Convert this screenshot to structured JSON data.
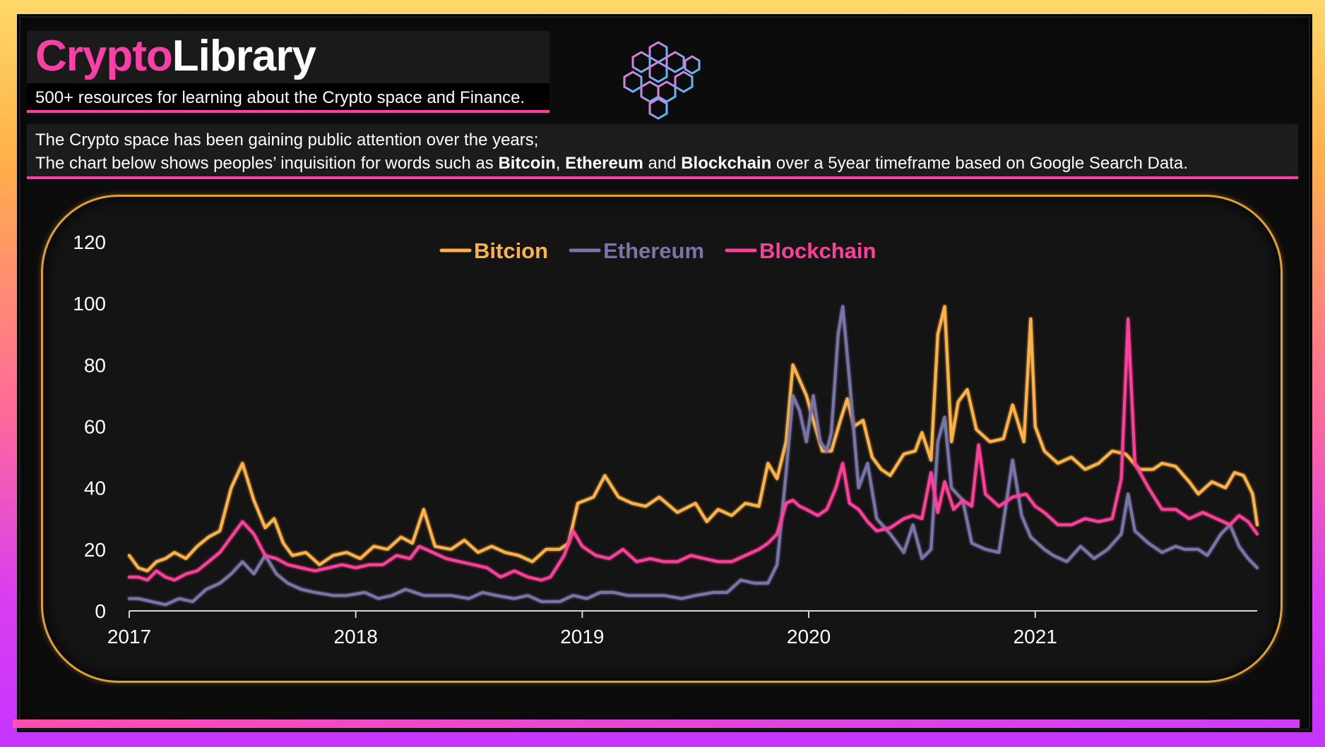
{
  "brand": {
    "part1": "Crypto",
    "part2": "Library"
  },
  "tagline": "500+ resources for learning about the Crypto space and Finance.",
  "description": {
    "line1": "The Crypto space has been gaining public attention over the years;",
    "line2_prefix": "The chart below shows peoples’ inquisition for words such as ",
    "term1": "Bitcoin",
    "sep1": ", ",
    "term2": "Ethereum",
    "sep2": " and ",
    "term3": "Blockchain",
    "line2_suffix": " over a 5year timeframe based on Google Search Data."
  },
  "colors": {
    "accent": "#ff3fa6",
    "bitcoin": "#ffb347",
    "ethereum": "#7a74a8",
    "blockchain": "#ff3f9a",
    "frame_gold": "#e0a030"
  },
  "icons": {
    "logo": "blockchain-cubes-icon"
  },
  "chart_data": {
    "type": "line",
    "title": "",
    "xlabel": "",
    "ylabel": "",
    "ylim": [
      0,
      120
    ],
    "xlim": [
      2017,
      2021.98
    ],
    "yticks": [
      0,
      20,
      40,
      60,
      80,
      100,
      120
    ],
    "xticks": [
      2017,
      2018,
      2019,
      2020,
      2021
    ],
    "legend_position": "top-center",
    "grid": false,
    "series": [
      {
        "name": "Bitcion",
        "color": "#ffb347",
        "points": [
          [
            2017.0,
            18
          ],
          [
            2017.04,
            14
          ],
          [
            2017.08,
            13
          ],
          [
            2017.12,
            16
          ],
          [
            2017.16,
            17
          ],
          [
            2017.2,
            19
          ],
          [
            2017.25,
            17
          ],
          [
            2017.3,
            21
          ],
          [
            2017.35,
            24
          ],
          [
            2017.4,
            26
          ],
          [
            2017.45,
            40
          ],
          [
            2017.5,
            48
          ],
          [
            2017.55,
            36
          ],
          [
            2017.6,
            27
          ],
          [
            2017.64,
            30
          ],
          [
            2017.68,
            22
          ],
          [
            2017.72,
            18
          ],
          [
            2017.78,
            19
          ],
          [
            2017.84,
            15
          ],
          [
            2017.9,
            18
          ],
          [
            2017.96,
            19
          ],
          [
            2018.02,
            17
          ],
          [
            2018.08,
            21
          ],
          [
            2018.14,
            20
          ],
          [
            2018.2,
            24
          ],
          [
            2018.25,
            22
          ],
          [
            2018.3,
            33
          ],
          [
            2018.35,
            21
          ],
          [
            2018.42,
            20
          ],
          [
            2018.48,
            23
          ],
          [
            2018.54,
            19
          ],
          [
            2018.6,
            21
          ],
          [
            2018.66,
            19
          ],
          [
            2018.72,
            18
          ],
          [
            2018.78,
            16
          ],
          [
            2018.84,
            20
          ],
          [
            2018.9,
            20
          ],
          [
            2018.94,
            22
          ],
          [
            2018.98,
            35
          ],
          [
            2019.05,
            37
          ],
          [
            2019.1,
            44
          ],
          [
            2019.16,
            37
          ],
          [
            2019.22,
            35
          ],
          [
            2019.28,
            34
          ],
          [
            2019.34,
            37
          ],
          [
            2019.42,
            32
          ],
          [
            2019.5,
            35
          ],
          [
            2019.55,
            29
          ],
          [
            2019.6,
            33
          ],
          [
            2019.66,
            31
          ],
          [
            2019.72,
            35
          ],
          [
            2019.78,
            34
          ],
          [
            2019.82,
            48
          ],
          [
            2019.86,
            43
          ],
          [
            2019.9,
            55
          ],
          [
            2019.93,
            80
          ],
          [
            2019.96,
            75
          ],
          [
            2019.99,
            70
          ],
          [
            2020.02,
            62
          ],
          [
            2020.06,
            52
          ],
          [
            2020.1,
            52
          ],
          [
            2020.14,
            62
          ],
          [
            2020.17,
            69
          ],
          [
            2020.2,
            60
          ],
          [
            2020.24,
            62
          ],
          [
            2020.28,
            50
          ],
          [
            2020.32,
            46
          ],
          [
            2020.36,
            44
          ],
          [
            2020.42,
            51
          ],
          [
            2020.47,
            52
          ],
          [
            2020.5,
            58
          ],
          [
            2020.54,
            49
          ],
          [
            2020.57,
            90
          ],
          [
            2020.6,
            99
          ],
          [
            2020.63,
            55
          ],
          [
            2020.66,
            68
          ],
          [
            2020.7,
            72
          ],
          [
            2020.74,
            59
          ],
          [
            2020.8,
            55
          ],
          [
            2020.86,
            56
          ],
          [
            2020.9,
            67
          ],
          [
            2020.95,
            55
          ],
          [
            2020.98,
            95
          ],
          [
            2021.0,
            60
          ],
          [
            2021.04,
            52
          ],
          [
            2021.1,
            48
          ],
          [
            2021.16,
            50
          ],
          [
            2021.22,
            46
          ],
          [
            2021.28,
            48
          ],
          [
            2021.34,
            52
          ],
          [
            2021.4,
            51
          ],
          [
            2021.46,
            46
          ],
          [
            2021.52,
            46
          ],
          [
            2021.56,
            48
          ],
          [
            2021.62,
            47
          ],
          [
            2021.68,
            42
          ],
          [
            2021.72,
            38
          ],
          [
            2021.78,
            42
          ],
          [
            2021.84,
            40
          ],
          [
            2021.88,
            45
          ],
          [
            2021.92,
            44
          ],
          [
            2021.96,
            38
          ],
          [
            2021.98,
            28
          ]
        ]
      },
      {
        "name": "Ethereum",
        "color": "#7a74a8",
        "points": [
          [
            2017.0,
            4
          ],
          [
            2017.04,
            4
          ],
          [
            2017.1,
            3
          ],
          [
            2017.16,
            2
          ],
          [
            2017.22,
            4
          ],
          [
            2017.28,
            3
          ],
          [
            2017.34,
            7
          ],
          [
            2017.4,
            9
          ],
          [
            2017.45,
            12
          ],
          [
            2017.5,
            16
          ],
          [
            2017.55,
            12
          ],
          [
            2017.6,
            18
          ],
          [
            2017.65,
            12
          ],
          [
            2017.7,
            9
          ],
          [
            2017.76,
            7
          ],
          [
            2017.82,
            6
          ],
          [
            2017.9,
            5
          ],
          [
            2017.96,
            5
          ],
          [
            2018.04,
            6
          ],
          [
            2018.1,
            4
          ],
          [
            2018.16,
            5
          ],
          [
            2018.22,
            7
          ],
          [
            2018.3,
            5
          ],
          [
            2018.36,
            5
          ],
          [
            2018.42,
            5
          ],
          [
            2018.5,
            4
          ],
          [
            2018.56,
            6
          ],
          [
            2018.62,
            5
          ],
          [
            2018.7,
            4
          ],
          [
            2018.76,
            5
          ],
          [
            2018.82,
            3
          ],
          [
            2018.9,
            3
          ],
          [
            2018.96,
            5
          ],
          [
            2019.02,
            4
          ],
          [
            2019.08,
            6
          ],
          [
            2019.14,
            6
          ],
          [
            2019.2,
            5
          ],
          [
            2019.28,
            5
          ],
          [
            2019.36,
            5
          ],
          [
            2019.44,
            4
          ],
          [
            2019.5,
            5
          ],
          [
            2019.58,
            6
          ],
          [
            2019.64,
            6
          ],
          [
            2019.7,
            10
          ],
          [
            2019.76,
            9
          ],
          [
            2019.82,
            9
          ],
          [
            2019.86,
            15
          ],
          [
            2019.9,
            45
          ],
          [
            2019.93,
            70
          ],
          [
            2019.96,
            65
          ],
          [
            2019.99,
            55
          ],
          [
            2020.02,
            70
          ],
          [
            2020.05,
            55
          ],
          [
            2020.08,
            52
          ],
          [
            2020.1,
            58
          ],
          [
            2020.13,
            90
          ],
          [
            2020.15,
            99
          ],
          [
            2020.18,
            75
          ],
          [
            2020.22,
            40
          ],
          [
            2020.26,
            48
          ],
          [
            2020.3,
            30
          ],
          [
            2020.36,
            25
          ],
          [
            2020.42,
            19
          ],
          [
            2020.46,
            28
          ],
          [
            2020.5,
            17
          ],
          [
            2020.54,
            20
          ],
          [
            2020.57,
            55
          ],
          [
            2020.6,
            63
          ],
          [
            2020.63,
            40
          ],
          [
            2020.68,
            36
          ],
          [
            2020.72,
            22
          ],
          [
            2020.78,
            20
          ],
          [
            2020.84,
            19
          ],
          [
            2020.9,
            49
          ],
          [
            2020.94,
            31
          ],
          [
            2020.98,
            24
          ],
          [
            2021.04,
            20
          ],
          [
            2021.08,
            18
          ],
          [
            2021.14,
            16
          ],
          [
            2021.2,
            21
          ],
          [
            2021.26,
            17
          ],
          [
            2021.32,
            20
          ],
          [
            2021.38,
            25
          ],
          [
            2021.41,
            38
          ],
          [
            2021.44,
            26
          ],
          [
            2021.5,
            22
          ],
          [
            2021.56,
            19
          ],
          [
            2021.62,
            21
          ],
          [
            2021.66,
            20
          ],
          [
            2021.72,
            20
          ],
          [
            2021.76,
            18
          ],
          [
            2021.82,
            25
          ],
          [
            2021.86,
            28
          ],
          [
            2021.9,
            21
          ],
          [
            2021.94,
            17
          ],
          [
            2021.98,
            14
          ]
        ]
      },
      {
        "name": "Blockchain",
        "color": "#ff3f9a",
        "points": [
          [
            2017.0,
            11
          ],
          [
            2017.04,
            11
          ],
          [
            2017.08,
            10
          ],
          [
            2017.12,
            13
          ],
          [
            2017.16,
            11
          ],
          [
            2017.2,
            10
          ],
          [
            2017.25,
            12
          ],
          [
            2017.3,
            13
          ],
          [
            2017.35,
            16
          ],
          [
            2017.4,
            19
          ],
          [
            2017.45,
            24
          ],
          [
            2017.5,
            29
          ],
          [
            2017.55,
            25
          ],
          [
            2017.6,
            18
          ],
          [
            2017.65,
            17
          ],
          [
            2017.7,
            15
          ],
          [
            2017.76,
            14
          ],
          [
            2017.82,
            13
          ],
          [
            2017.88,
            14
          ],
          [
            2017.94,
            15
          ],
          [
            2018.0,
            14
          ],
          [
            2018.06,
            15
          ],
          [
            2018.12,
            15
          ],
          [
            2018.18,
            18
          ],
          [
            2018.24,
            17
          ],
          [
            2018.28,
            21
          ],
          [
            2018.34,
            19
          ],
          [
            2018.4,
            17
          ],
          [
            2018.46,
            16
          ],
          [
            2018.52,
            15
          ],
          [
            2018.58,
            14
          ],
          [
            2018.64,
            11
          ],
          [
            2018.7,
            13
          ],
          [
            2018.76,
            11
          ],
          [
            2018.82,
            10
          ],
          [
            2018.86,
            11
          ],
          [
            2018.92,
            18
          ],
          [
            2018.96,
            26
          ],
          [
            2019.0,
            21
          ],
          [
            2019.06,
            18
          ],
          [
            2019.12,
            17
          ],
          [
            2019.18,
            20
          ],
          [
            2019.24,
            16
          ],
          [
            2019.3,
            17
          ],
          [
            2019.36,
            16
          ],
          [
            2019.42,
            16
          ],
          [
            2019.48,
            18
          ],
          [
            2019.54,
            17
          ],
          [
            2019.6,
            16
          ],
          [
            2019.66,
            16
          ],
          [
            2019.72,
            18
          ],
          [
            2019.78,
            20
          ],
          [
            2019.82,
            22
          ],
          [
            2019.86,
            25
          ],
          [
            2019.9,
            35
          ],
          [
            2019.93,
            36
          ],
          [
            2019.96,
            34
          ],
          [
            2019.99,
            33
          ],
          [
            2020.04,
            31
          ],
          [
            2020.08,
            33
          ],
          [
            2020.12,
            40
          ],
          [
            2020.15,
            48
          ],
          [
            2020.18,
            35
          ],
          [
            2020.22,
            33
          ],
          [
            2020.26,
            29
          ],
          [
            2020.3,
            26
          ],
          [
            2020.36,
            27
          ],
          [
            2020.42,
            30
          ],
          [
            2020.46,
            31
          ],
          [
            2020.5,
            30
          ],
          [
            2020.54,
            45
          ],
          [
            2020.57,
            32
          ],
          [
            2020.6,
            42
          ],
          [
            2020.64,
            33
          ],
          [
            2020.68,
            36
          ],
          [
            2020.72,
            34
          ],
          [
            2020.75,
            54
          ],
          [
            2020.78,
            38
          ],
          [
            2020.84,
            34
          ],
          [
            2020.9,
            37
          ],
          [
            2020.96,
            38
          ],
          [
            2021.0,
            34
          ],
          [
            2021.04,
            32
          ],
          [
            2021.1,
            28
          ],
          [
            2021.16,
            28
          ],
          [
            2021.22,
            30
          ],
          [
            2021.28,
            29
          ],
          [
            2021.34,
            30
          ],
          [
            2021.38,
            43
          ],
          [
            2021.41,
            95
          ],
          [
            2021.44,
            48
          ],
          [
            2021.5,
            40
          ],
          [
            2021.56,
            33
          ],
          [
            2021.62,
            33
          ],
          [
            2021.68,
            30
          ],
          [
            2021.74,
            32
          ],
          [
            2021.8,
            30
          ],
          [
            2021.86,
            28
          ],
          [
            2021.9,
            31
          ],
          [
            2021.94,
            29
          ],
          [
            2021.98,
            25
          ]
        ]
      }
    ]
  }
}
